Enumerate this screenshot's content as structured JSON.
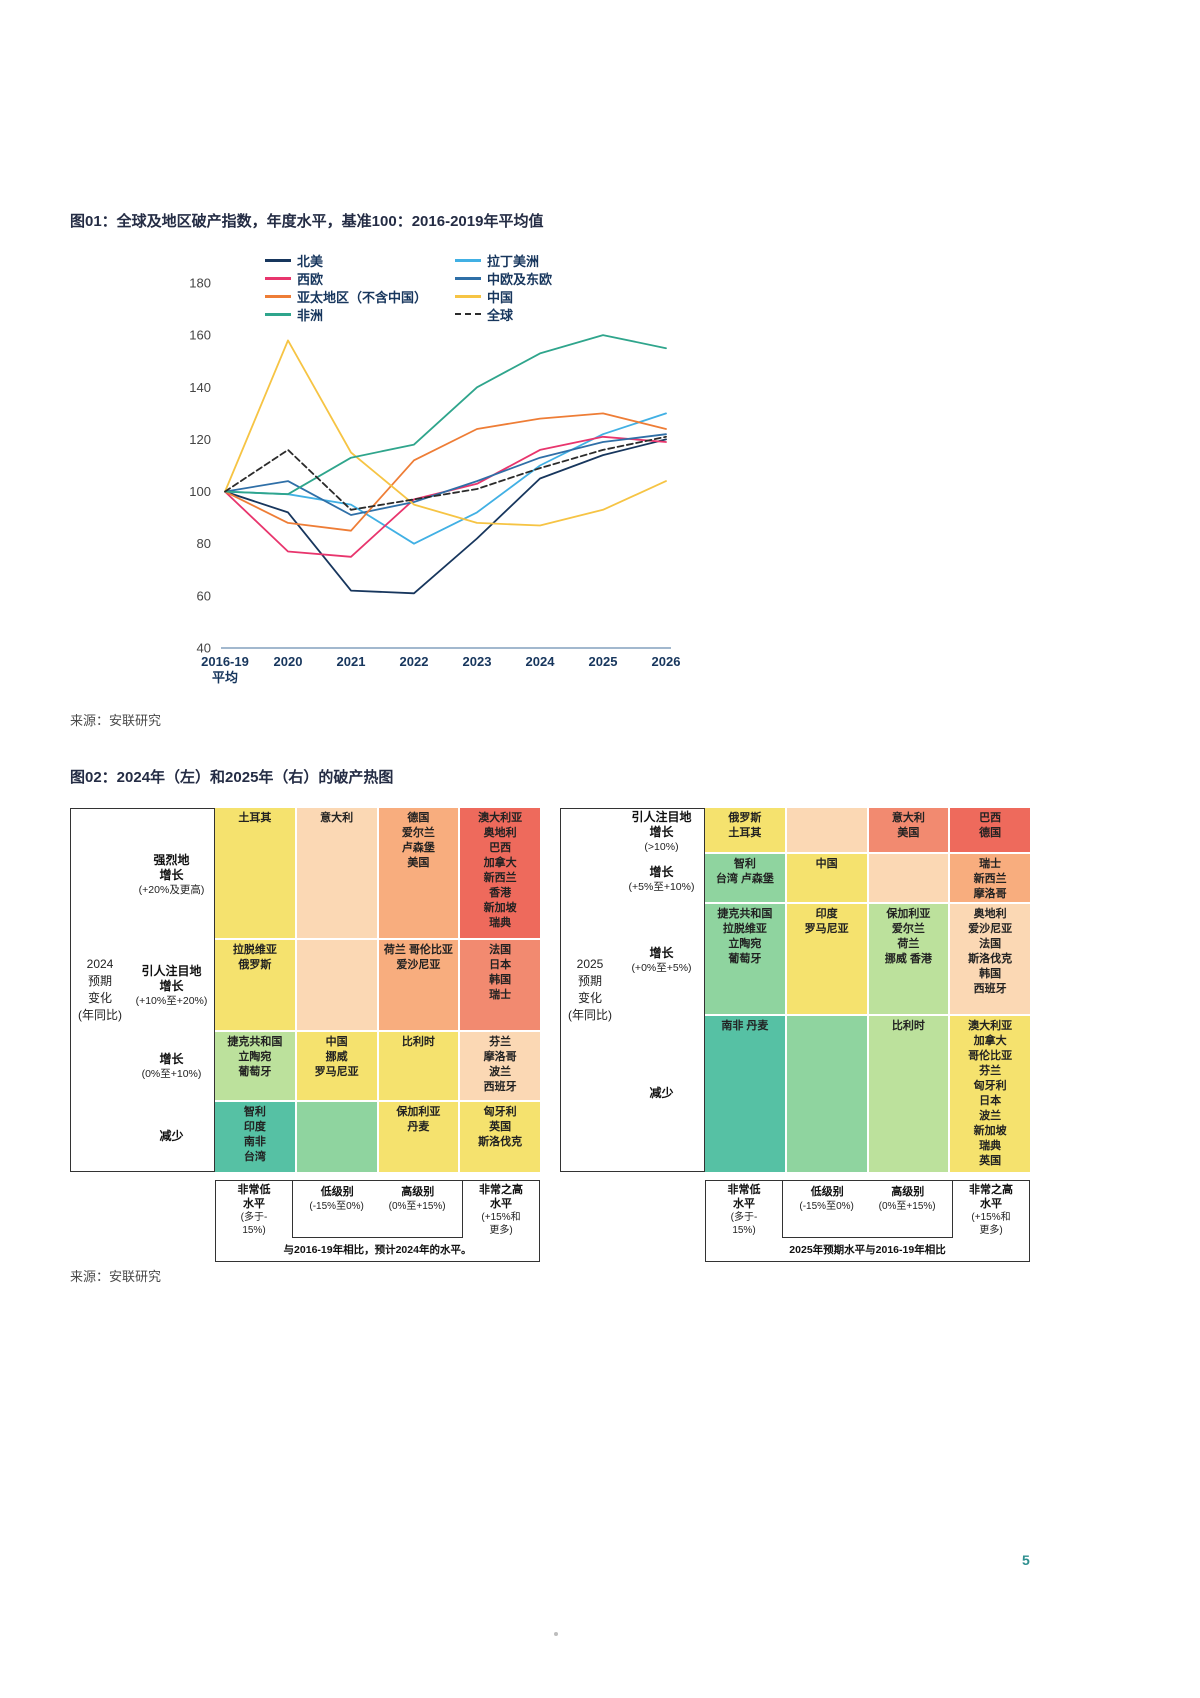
{
  "page": {
    "number": "5"
  },
  "fig1": {
    "title": "图01：全球及地区破产指数，年度水平，基准100：2016-2019年平均值",
    "source": "来源：安联研究"
  },
  "fig2": {
    "title": "图02：2024年（左）和2025年（右）的破产热图",
    "source": "来源：安联研究",
    "palette": {
      "teal": "#56c1a4",
      "green": "#8fd49f",
      "lightgreen": "#bce19c",
      "yellow": "#f5e26e",
      "peach": "#fbd8b4",
      "orange": "#f8ad7e",
      "salmon": "#f28a70",
      "red": "#ee6a5c"
    }
  },
  "chart_data": [
    {
      "type": "line",
      "title": "全球及地区破产指数，年度水平，基准100：2016-2019年平均值",
      "x_categories": [
        "2016-19平均",
        "2020",
        "2021",
        "2022",
        "2023",
        "2024",
        "2025",
        "2026"
      ],
      "x_tick_lines": [
        [
          "2016-19",
          "平均"
        ],
        [
          "2020"
        ],
        [
          "2021"
        ],
        [
          "2022"
        ],
        [
          "2023"
        ],
        [
          "2024"
        ],
        [
          "2025"
        ],
        [
          "2026"
        ]
      ],
      "ylim": [
        40,
        180
      ],
      "y_ticks": [
        40,
        60,
        80,
        100,
        120,
        140,
        160,
        180
      ],
      "legend_position": "top",
      "grid": false,
      "series": [
        {
          "name": "北美",
          "color": "#17365d",
          "dash": false,
          "values": [
            100,
            92,
            62,
            61,
            82,
            105,
            114,
            120
          ]
        },
        {
          "name": "拉丁美洲",
          "color": "#41b0e4",
          "dash": false,
          "values": [
            100,
            99,
            95,
            80,
            92,
            110,
            122,
            130
          ]
        },
        {
          "name": "西欧",
          "color": "#e8356d",
          "dash": false,
          "values": [
            100,
            77,
            75,
            97,
            103,
            116,
            121,
            119
          ]
        },
        {
          "name": "中欧及东欧",
          "color": "#2f6fa7",
          "dash": false,
          "values": [
            100,
            104,
            91,
            96,
            104,
            113,
            119,
            122
          ]
        },
        {
          "name": "亚太地区（不含中国）",
          "color": "#ee7d36",
          "dash": false,
          "values": [
            100,
            88,
            85,
            112,
            124,
            128,
            130,
            124
          ]
        },
        {
          "name": "中国",
          "color": "#f6c444",
          "dash": false,
          "values": [
            100,
            158,
            115,
            95,
            88,
            87,
            93,
            104
          ]
        },
        {
          "name": "非洲",
          "color": "#2fa58c",
          "dash": false,
          "values": [
            100,
            99,
            113,
            118,
            140,
            153,
            160,
            155
          ]
        },
        {
          "name": "全球",
          "color": "#2b2b2b",
          "dash": true,
          "values": [
            100,
            116,
            93,
            97,
            101,
            109,
            116,
            121
          ]
        }
      ],
      "legend_columns": [
        [
          "北美",
          "西欧",
          "亚太地区（不含中国）",
          "非洲"
        ],
        [
          "拉丁美洲",
          "中欧及东欧",
          "中国",
          "全球"
        ]
      ]
    },
    {
      "type": "heatmap",
      "year": "2024",
      "year_lines": [
        "2024",
        "预期",
        "变化",
        "(年同比)"
      ],
      "rows": [
        {
          "bold": [
            "强烈地",
            "增长"
          ],
          "note": [
            "(+20%及更高)"
          ],
          "h": 130,
          "cells": [
            {
              "c": "yellow",
              "lines": [
                "土耳其"
              ]
            },
            {
              "c": "peach",
              "lines": [
                "意大利"
              ]
            },
            {
              "c": "orange",
              "lines": [
                "德国",
                "爱尔兰",
                "卢森堡",
                "美国"
              ]
            },
            {
              "c": "red",
              "lines": [
                "澳大利亚",
                "奥地利",
                "巴西",
                "加拿大",
                "新西兰",
                "香港",
                "新加坡",
                "瑞典"
              ]
            }
          ]
        },
        {
          "bold": [
            "引人注目地",
            "增长"
          ],
          "note": [
            "(+10%至+20%)"
          ],
          "h": 90,
          "cells": [
            {
              "c": "yellow",
              "lines": [
                "拉脱维亚",
                "俄罗斯"
              ]
            },
            {
              "c": "peach",
              "lines": []
            },
            {
              "c": "orange",
              "lines": [
                "荷兰 哥伦比亚",
                "爱沙尼亚"
              ]
            },
            {
              "c": "salmon",
              "lines": [
                "法国",
                "日本",
                "韩国",
                "瑞士"
              ]
            }
          ]
        },
        {
          "bold": [
            "增长"
          ],
          "note": [
            "(0%至+10%)"
          ],
          "h": 68,
          "cells": [
            {
              "c": "lightgreen",
              "lines": [
                "捷克共和国",
                "立陶宛",
                "葡萄牙"
              ]
            },
            {
              "c": "yellow",
              "lines": [
                "中国",
                "挪威",
                "罗马尼亚"
              ]
            },
            {
              "c": "yellow",
              "lines": [
                "比利时"
              ]
            },
            {
              "c": "peach",
              "lines": [
                "芬兰",
                "摩洛哥",
                "波兰",
                "西班牙"
              ]
            }
          ]
        },
        {
          "bold": [
            "减少"
          ],
          "note": [],
          "h": 70,
          "cells": [
            {
              "c": "teal",
              "lines": [
                "智利",
                "印度",
                "南非",
                "台湾"
              ]
            },
            {
              "c": "green",
              "lines": []
            },
            {
              "c": "yellow",
              "lines": [
                "保加利亚",
                "丹麦"
              ]
            },
            {
              "c": "yellow",
              "lines": [
                "匈牙利",
                "英国",
                "斯洛伐克"
              ]
            }
          ]
        }
      ],
      "legend": {
        "col1_bold": [
          "非常低",
          "水平"
        ],
        "col1_note": [
          "(多于-",
          "15%)"
        ],
        "mid_bold": [
          "低级别",
          "高级别"
        ],
        "mid_note": [
          "(-15%至0%)",
          "(0%至+15%)"
        ],
        "col4_bold": [
          "非常之高",
          "水平"
        ],
        "col4_note": [
          "(+15%和",
          "更多)"
        ],
        "footer": "与2016-19年相比，预计2024年的水平。"
      }
    },
    {
      "type": "heatmap",
      "year": "2025",
      "year_lines": [
        "2025",
        "预期",
        "变化",
        "(年同比)"
      ],
      "rows": [
        {
          "bold": [
            "引人注目地",
            "增长"
          ],
          "note": [
            "(>10%)"
          ],
          "h": 44,
          "cells": [
            {
              "c": "yellow",
              "lines": [
                "俄罗斯",
                "土耳其"
              ]
            },
            {
              "c": "peach",
              "lines": []
            },
            {
              "c": "salmon",
              "lines": [
                "意大利",
                "美国"
              ]
            },
            {
              "c": "red",
              "lines": [
                "巴西",
                "德国"
              ]
            }
          ]
        },
        {
          "bold": [
            "增长"
          ],
          "note": [
            "(+5%至+10%)"
          ],
          "h": 48,
          "cells": [
            {
              "c": "green",
              "lines": [
                "智利",
                "台湾 卢森堡"
              ]
            },
            {
              "c": "yellow",
              "lines": [
                "中国"
              ]
            },
            {
              "c": "peach",
              "lines": []
            },
            {
              "c": "orange",
              "lines": [
                "瑞士",
                "新西兰",
                "摩洛哥"
              ]
            }
          ]
        },
        {
          "bold": [
            "增长"
          ],
          "note": [
            "(+0%至+5%)"
          ],
          "h": 110,
          "cells": [
            {
              "c": "green",
              "lines": [
                "捷克共和国",
                "拉脱维亚",
                "立陶宛",
                "葡萄牙"
              ]
            },
            {
              "c": "yellow",
              "lines": [
                "印度",
                "罗马尼亚"
              ]
            },
            {
              "c": "lightgreen",
              "lines": [
                "保加利亚",
                "爱尔兰",
                "荷兰",
                "挪威 香港"
              ]
            },
            {
              "c": "peach",
              "lines": [
                "奥地利",
                "爱沙尼亚",
                "法国",
                "斯洛伐克",
                "韩国",
                "西班牙"
              ]
            }
          ]
        },
        {
          "bold": [
            "减少"
          ],
          "note": [],
          "h": 156,
          "cells": [
            {
              "c": "teal",
              "lines": [
                "南非 丹麦"
              ]
            },
            {
              "c": "green",
              "lines": []
            },
            {
              "c": "lightgreen",
              "lines": [
                "比利时"
              ]
            },
            {
              "c": "yellow",
              "lines": [
                "澳大利亚",
                "加拿大",
                "哥伦比亚",
                "芬兰",
                "匈牙利",
                "日本",
                "波兰",
                "新加坡",
                "瑞典",
                "英国"
              ]
            }
          ]
        }
      ],
      "legend": {
        "col1_bold": [
          "非常低",
          "水平"
        ],
        "col1_note": [
          "(多于-",
          "15%)"
        ],
        "mid_bold": [
          "低级别",
          "高级别"
        ],
        "mid_note": [
          "(-15%至0%)",
          "(0%至+15%)"
        ],
        "col4_bold": [
          "非常之高",
          "水平"
        ],
        "col4_note": [
          "(+15%和",
          "更多)"
        ],
        "footer": "2025年预期水平与2016-19年相比"
      }
    }
  ]
}
